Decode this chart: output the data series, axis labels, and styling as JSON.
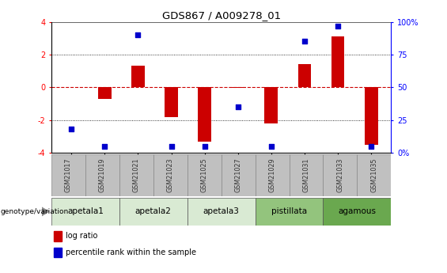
{
  "title": "GDS867 / A009278_01",
  "samples": [
    "GSM21017",
    "GSM21019",
    "GSM21021",
    "GSM21023",
    "GSM21025",
    "GSM21027",
    "GSM21029",
    "GSM21031",
    "GSM21033",
    "GSM21035"
  ],
  "log_ratios": [
    0.0,
    -0.7,
    1.3,
    -1.8,
    -3.3,
    -0.05,
    -2.2,
    1.4,
    3.1,
    -3.5
  ],
  "percentile_ranks": [
    18,
    5,
    90,
    5,
    5,
    35,
    5,
    85,
    97,
    5
  ],
  "group_defs": [
    {
      "label": "apetala1",
      "start": 0,
      "end": 1,
      "color": "#d9ead3"
    },
    {
      "label": "apetala2",
      "start": 2,
      "end": 3,
      "color": "#d9ead3"
    },
    {
      "label": "apetala3",
      "start": 4,
      "end": 5,
      "color": "#d9ead3"
    },
    {
      "label": "pistillata",
      "start": 6,
      "end": 7,
      "color": "#93c47d"
    },
    {
      "label": "agamous",
      "start": 8,
      "end": 9,
      "color": "#6aa84f"
    }
  ],
  "ylim_left": [
    -4,
    4
  ],
  "ylim_right": [
    0,
    100
  ],
  "yticks_left": [
    -4,
    -2,
    0,
    2,
    4
  ],
  "yticks_right": [
    0,
    25,
    50,
    75,
    100
  ],
  "bar_color": "#cc0000",
  "dot_color": "#0000cc",
  "hline_color": "#cc0000",
  "dotline_color": "#000000",
  "background_color": "#ffffff",
  "legend_red_label": "log ratio",
  "legend_blue_label": "percentile rank within the sample",
  "genotype_label": "genotype/variation",
  "sample_box_color": "#c0c0c0",
  "sample_box_edge": "#888888",
  "bar_width": 0.4
}
